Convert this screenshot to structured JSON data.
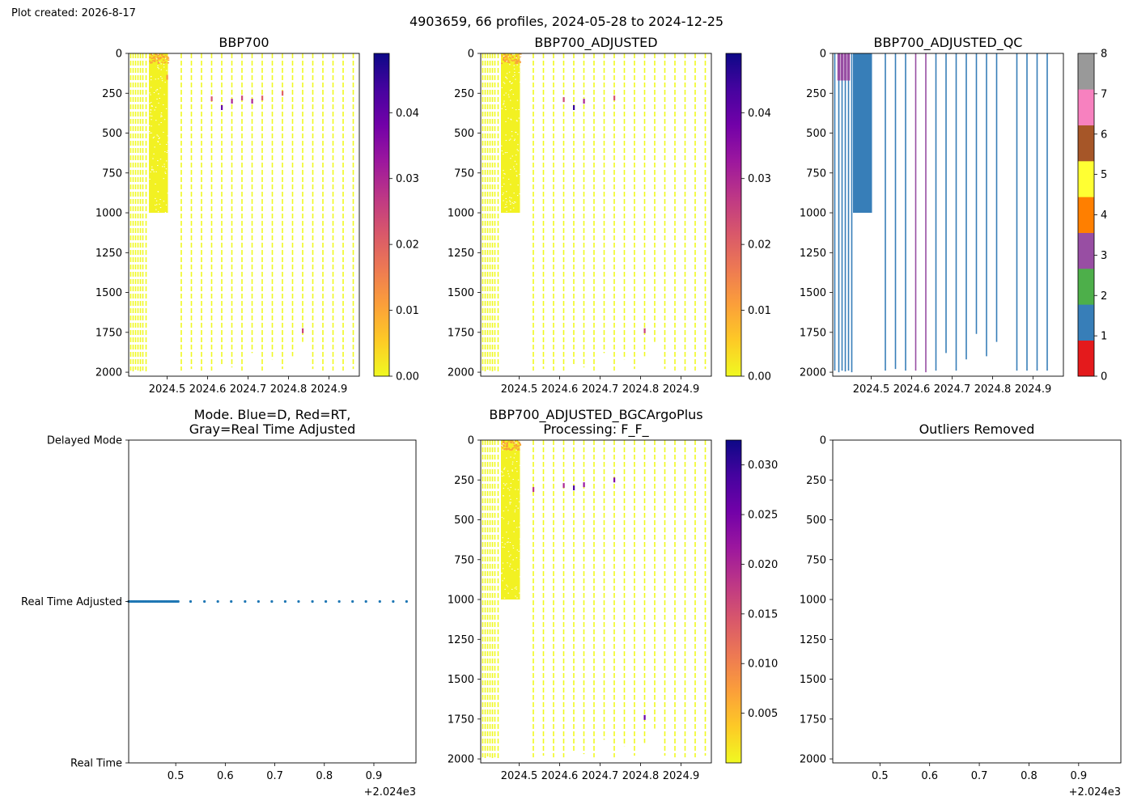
{
  "header": {
    "created": "Plot created: 2026-8-17",
    "suptitle": "4903659, 66 profiles, 2024-05-28 to 2024-12-25"
  },
  "colors": {
    "cmap_plasma_r": [
      "#f0f921",
      "#fdca26",
      "#fb9f3a",
      "#ed7953",
      "#d8576b",
      "#bd3786",
      "#9c179e",
      "#7201a8",
      "#46039f",
      "#0d0887"
    ],
    "qc": [
      "#e41a1c",
      "#377eb8",
      "#4daf4a",
      "#984ea3",
      "#ff7f00",
      "#ffff33",
      "#a65628",
      "#f781bf",
      "#999999"
    ],
    "mode_points": "#1f77b4"
  },
  "chart_data": [
    {
      "id": "bbp700",
      "type": "heatmap",
      "title": "BBP700",
      "x_range": [
        2024.405,
        2024.975
      ],
      "y_range": [
        2025,
        0
      ],
      "x_ticks": [
        "2024.5",
        "2024.6",
        "2024.7",
        "2024.8",
        "2024.9"
      ],
      "x_tick_values": [
        2024.5,
        2024.6,
        2024.7,
        2024.8,
        2024.9
      ],
      "y_ticks": [
        "0",
        "250",
        "500",
        "750",
        "1000",
        "1250",
        "1500",
        "1750",
        "2000"
      ],
      "colorbar": {
        "min": 0.0,
        "max": 0.049,
        "ticks": [
          "0.00",
          "0.01",
          "0.02",
          "0.03",
          "0.04"
        ],
        "tick_values": [
          0,
          0.01,
          0.02,
          0.03,
          0.04
        ]
      },
      "profiles_x": [
        2024.41,
        2024.416,
        2024.422,
        2024.428,
        2024.434,
        2024.44,
        2024.448,
        2024.455,
        2024.462,
        2024.47,
        2024.478,
        2024.486,
        2024.494,
        2024.502,
        2024.535,
        2024.56,
        2024.585,
        2024.61,
        2024.635,
        2024.66,
        2024.685,
        2024.71,
        2024.735,
        2024.76,
        2024.785,
        2024.81,
        2024.835,
        2024.86,
        2024.885,
        2024.91,
        2024.935,
        2024.96
      ],
      "profiles_maxdepth": [
        1990,
        2000,
        1985,
        1990,
        1995,
        1990,
        2000,
        1040,
        1000,
        1000,
        1000,
        1000,
        1000,
        1010,
        1990,
        1980,
        1990,
        1990,
        1960,
        1970,
        1990,
        1880,
        1990,
        1920,
        1980,
        1900,
        1810,
        1980,
        1990,
        1990,
        1990,
        1980
      ],
      "hotspots": [
        {
          "x": 2024.47,
          "depth": 30,
          "value": 0.008
        },
        {
          "x": 2024.5,
          "depth": 150,
          "value": 0.012
        },
        {
          "x": 2024.61,
          "depth": 285,
          "value": 0.022
        },
        {
          "x": 2024.635,
          "depth": 340,
          "value": 0.04
        },
        {
          "x": 2024.66,
          "depth": 300,
          "value": 0.03
        },
        {
          "x": 2024.685,
          "depth": 280,
          "value": 0.024
        },
        {
          "x": 2024.71,
          "depth": 300,
          "value": 0.03
        },
        {
          "x": 2024.735,
          "depth": 280,
          "value": 0.02
        },
        {
          "x": 2024.785,
          "depth": 250,
          "value": 0.02
        },
        {
          "x": 2024.835,
          "depth": 1740,
          "value": 0.025
        }
      ]
    },
    {
      "id": "bbp700_adjusted",
      "type": "heatmap",
      "title": "BBP700_ADJUSTED",
      "x_range": [
        2024.405,
        2024.975
      ],
      "y_range": [
        2025,
        0
      ],
      "x_ticks": [
        "2024.5",
        "2024.6",
        "2024.7",
        "2024.8",
        "2024.9"
      ],
      "x_tick_values": [
        2024.5,
        2024.6,
        2024.7,
        2024.8,
        2024.9
      ],
      "y_ticks": [
        "0",
        "250",
        "500",
        "750",
        "1000",
        "1250",
        "1500",
        "1750",
        "2000"
      ],
      "colorbar": {
        "min": 0.0,
        "max": 0.049,
        "ticks": [
          "0.00",
          "0.01",
          "0.02",
          "0.03",
          "0.04"
        ],
        "tick_values": [
          0,
          0.01,
          0.02,
          0.03,
          0.04
        ]
      },
      "profiles_x": [
        2024.41,
        2024.416,
        2024.422,
        2024.428,
        2024.434,
        2024.44,
        2024.448,
        2024.455,
        2024.462,
        2024.47,
        2024.478,
        2024.486,
        2024.494,
        2024.502,
        2024.535,
        2024.56,
        2024.585,
        2024.61,
        2024.635,
        2024.66,
        2024.685,
        2024.71,
        2024.735,
        2024.76,
        2024.785,
        2024.81,
        2024.835,
        2024.86,
        2024.885,
        2024.91,
        2024.935,
        2024.96
      ],
      "profiles_maxdepth": [
        1990,
        2000,
        1985,
        1990,
        1995,
        1990,
        2000,
        1040,
        1000,
        1000,
        1000,
        1000,
        1000,
        1010,
        1990,
        1980,
        1990,
        1990,
        1960,
        1970,
        1990,
        1880,
        1990,
        1920,
        1980,
        1900,
        1810,
        1980,
        1990,
        1990,
        1990,
        1980
      ],
      "hotspots": [
        {
          "x": 2024.47,
          "depth": 30,
          "value": 0.008
        },
        {
          "x": 2024.61,
          "depth": 290,
          "value": 0.024
        },
        {
          "x": 2024.635,
          "depth": 340,
          "value": 0.045
        },
        {
          "x": 2024.66,
          "depth": 300,
          "value": 0.03
        },
        {
          "x": 2024.735,
          "depth": 280,
          "value": 0.022
        },
        {
          "x": 2024.81,
          "depth": 1740,
          "value": 0.025
        }
      ]
    },
    {
      "id": "bbp700_adjusted_qc",
      "type": "heatmap",
      "title": "BBP700_ADJUSTED_QC",
      "x_range": [
        2024.405,
        2024.975
      ],
      "y_range": [
        2025,
        0
      ],
      "x_ticks": [
        "2024.5",
        "2024.6",
        "2024.7",
        "2024.8",
        "2024.9"
      ],
      "x_tick_values": [
        2024.5,
        2024.6,
        2024.7,
        2024.8,
        2024.9
      ],
      "y_ticks": [
        "0",
        "250",
        "500",
        "750",
        "1000",
        "1250",
        "1500",
        "1750",
        "2000"
      ],
      "colorbar": {
        "min": 0,
        "max": 8,
        "ticks": [
          "0",
          "1",
          "2",
          "3",
          "4",
          "5",
          "6",
          "7",
          "8"
        ],
        "tick_values": [
          0,
          1,
          2,
          3,
          4,
          5,
          6,
          7,
          8
        ]
      },
      "solid_block": {
        "x_start": 2024.455,
        "x_end": 2024.502,
        "depth_end": 1000,
        "qc": 1
      },
      "profiles": [
        {
          "x": 2024.41,
          "maxdepth": 1990,
          "qc": 1,
          "top_qc": 1
        },
        {
          "x": 2024.42,
          "maxdepth": 2000,
          "qc": 1,
          "top_qc": 3
        },
        {
          "x": 2024.428,
          "maxdepth": 1990,
          "qc": 1,
          "top_qc": 3
        },
        {
          "x": 2024.436,
          "maxdepth": 1995,
          "qc": 1,
          "top_qc": 3
        },
        {
          "x": 2024.444,
          "maxdepth": 1990,
          "qc": 1,
          "top_qc": 3
        },
        {
          "x": 2024.452,
          "maxdepth": 2000,
          "qc": 1,
          "top_qc": 1
        },
        {
          "x": 2024.535,
          "maxdepth": 1990,
          "qc": 1,
          "top_qc": 1
        },
        {
          "x": 2024.56,
          "maxdepth": 1980,
          "qc": 1,
          "top_qc": 1
        },
        {
          "x": 2024.585,
          "maxdepth": 1990,
          "qc": 1,
          "top_qc": 1
        },
        {
          "x": 2024.61,
          "maxdepth": 1990,
          "qc": 3,
          "top_qc": 3
        },
        {
          "x": 2024.635,
          "maxdepth": 2000,
          "qc": 3,
          "top_qc": 3
        },
        {
          "x": 2024.66,
          "maxdepth": 1990,
          "qc": 1,
          "top_qc": 1
        },
        {
          "x": 2024.685,
          "maxdepth": 1880,
          "qc": 1,
          "top_qc": 1
        },
        {
          "x": 2024.71,
          "maxdepth": 1990,
          "qc": 1,
          "top_qc": 1
        },
        {
          "x": 2024.735,
          "maxdepth": 1920,
          "qc": 1,
          "top_qc": 1
        },
        {
          "x": 2024.76,
          "maxdepth": 1760,
          "qc": 1,
          "top_qc": 1
        },
        {
          "x": 2024.785,
          "maxdepth": 1900,
          "qc": 1,
          "top_qc": 1
        },
        {
          "x": 2024.81,
          "maxdepth": 1810,
          "qc": 1,
          "top_qc": 1
        },
        {
          "x": 2024.86,
          "maxdepth": 1990,
          "qc": 1,
          "top_qc": 1
        },
        {
          "x": 2024.885,
          "maxdepth": 1990,
          "qc": 1,
          "top_qc": 1
        },
        {
          "x": 2024.91,
          "maxdepth": 1990,
          "qc": 1,
          "top_qc": 1
        },
        {
          "x": 2024.935,
          "maxdepth": 1990,
          "qc": 1,
          "top_qc": 1
        }
      ]
    },
    {
      "id": "mode",
      "type": "scatter",
      "title": "Mode. Blue=D, Red=RT,",
      "title_line2": "Gray=Real Time Adjusted",
      "x_range": [
        0.405,
        0.985
      ],
      "x_ticks": [
        "0.5",
        "0.6",
        "0.7",
        "0.8",
        "0.9"
      ],
      "x_tick_values": [
        0.5,
        0.6,
        0.7,
        0.8,
        0.9
      ],
      "x_offset_label": "+2.024e3",
      "y_categories": [
        "Real Time",
        "Real Time Adjusted",
        "Delayed Mode"
      ],
      "dense_x_range": [
        0.405,
        0.505
      ],
      "dense_count": 34,
      "points_x": [
        0.53,
        0.558,
        0.585,
        0.612,
        0.64,
        0.667,
        0.694,
        0.721,
        0.748,
        0.776,
        0.803,
        0.83,
        0.857,
        0.884,
        0.912,
        0.939,
        0.966
      ],
      "points_y": "Real Time Adjusted"
    },
    {
      "id": "bbp700_adjusted_bgcargoplus",
      "type": "heatmap",
      "title": "BBP700_ADJUSTED_BGCArgoPlus",
      "title_line2": "Processing: F_F_",
      "x_range": [
        2024.405,
        2024.975
      ],
      "y_range": [
        2025,
        0
      ],
      "x_ticks": [
        "2024.5",
        "2024.6",
        "2024.7",
        "2024.8",
        "2024.9"
      ],
      "x_tick_values": [
        2024.5,
        2024.6,
        2024.7,
        2024.8,
        2024.9
      ],
      "y_ticks": [
        "0",
        "250",
        "500",
        "750",
        "1000",
        "1250",
        "1500",
        "1750",
        "2000"
      ],
      "colorbar": {
        "min": 0.0,
        "max": 0.0325,
        "ticks": [
          "0.005",
          "0.010",
          "0.015",
          "0.020",
          "0.025",
          "0.030"
        ],
        "tick_values": [
          0.005,
          0.01,
          0.015,
          0.02,
          0.025,
          0.03
        ]
      },
      "profiles_x": [
        2024.41,
        2024.416,
        2024.422,
        2024.428,
        2024.434,
        2024.44,
        2024.448,
        2024.455,
        2024.462,
        2024.47,
        2024.478,
        2024.486,
        2024.494,
        2024.502,
        2024.535,
        2024.56,
        2024.585,
        2024.61,
        2024.635,
        2024.66,
        2024.685,
        2024.71,
        2024.735,
        2024.76,
        2024.785,
        2024.81,
        2024.835,
        2024.86,
        2024.885,
        2024.91,
        2024.935,
        2024.96
      ],
      "profiles_maxdepth": [
        1990,
        2000,
        1985,
        1990,
        1995,
        1990,
        2000,
        1040,
        1000,
        1000,
        1000,
        1000,
        1000,
        1010,
        1990,
        1980,
        1990,
        1990,
        1960,
        1970,
        1990,
        1880,
        1990,
        1920,
        1980,
        1900,
        1810,
        1980,
        1990,
        1990,
        1990,
        1980
      ],
      "hotspots": [
        {
          "x": 2024.47,
          "depth": 30,
          "value": 0.008
        },
        {
          "x": 2024.535,
          "depth": 310,
          "value": 0.018
        },
        {
          "x": 2024.61,
          "depth": 285,
          "value": 0.02
        },
        {
          "x": 2024.635,
          "depth": 300,
          "value": 0.028
        },
        {
          "x": 2024.66,
          "depth": 280,
          "value": 0.022
        },
        {
          "x": 2024.735,
          "depth": 250,
          "value": 0.024
        },
        {
          "x": 2024.81,
          "depth": 1740,
          "value": 0.026
        }
      ]
    },
    {
      "id": "outliers_removed",
      "type": "scatter",
      "title": "Outliers Removed",
      "x_range": [
        0.405,
        0.985
      ],
      "x_ticks": [
        "0.5",
        "0.6",
        "0.7",
        "0.8",
        "0.9"
      ],
      "x_tick_values": [
        0.5,
        0.6,
        0.7,
        0.8,
        0.9
      ],
      "x_offset_label": "+2.024e3",
      "y_range": [
        2025,
        0
      ],
      "y_ticks": [
        "0",
        "250",
        "500",
        "750",
        "1000",
        "1250",
        "1500",
        "1750",
        "2000"
      ],
      "points": []
    }
  ]
}
